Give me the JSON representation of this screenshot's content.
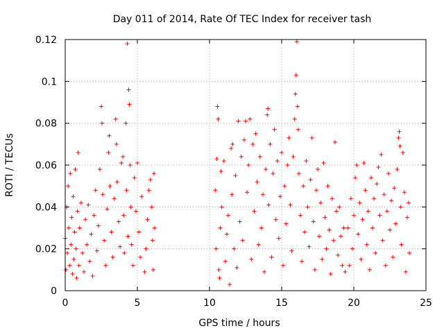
{
  "chart_data": {
    "type": "scatter",
    "title": "Day 011 of 2014, Rate Of TEC Index for receiver tash",
    "xlabel": "GPS time / hours",
    "ylabel": "ROTI / TECUs",
    "xlim": [
      0,
      25
    ],
    "ylim": [
      0,
      0.12
    ],
    "x_ticks": [
      0,
      5,
      10,
      15,
      20,
      25
    ],
    "y_ticks": [
      0,
      0.02,
      0.04,
      0.06,
      0.08,
      0.1,
      0.12
    ],
    "x_tick_labels": [
      "0",
      "5",
      "10",
      "15",
      "20",
      "25"
    ],
    "y_tick_labels": [
      "0",
      "0.02",
      "0.04",
      "0.06",
      "0.08",
      "0.1",
      "0.12"
    ],
    "grid": true,
    "marker": "+",
    "color": "#ff0000",
    "series": [
      {
        "name": "ROTI",
        "points": [
          [
            0.0,
            0.025
          ],
          [
            0.05,
            0.01
          ],
          [
            0.1,
            0.04
          ],
          [
            0.15,
            0.018
          ],
          [
            0.2,
            0.05
          ],
          [
            0.25,
            0.03
          ],
          [
            0.3,
            0.012
          ],
          [
            0.35,
            0.056
          ],
          [
            0.4,
            0.022
          ],
          [
            0.45,
            0.035
          ],
          [
            0.5,
            0.008
          ],
          [
            0.55,
            0.045
          ],
          [
            0.6,
            0.015
          ],
          [
            0.65,
            0.028
          ],
          [
            0.7,
            0.058
          ],
          [
            0.75,
            0.02
          ],
          [
            0.8,
            0.006
          ],
          [
            0.85,
            0.038
          ],
          [
            0.9,
            0.066
          ],
          [
            0.95,
            0.012
          ],
          [
            1.0,
            0.03
          ],
          [
            1.1,
            0.042
          ],
          [
            1.2,
            0.018
          ],
          [
            1.3,
            0.009
          ],
          [
            1.4,
            0.034
          ],
          [
            1.5,
            0.022
          ],
          [
            1.6,
            0.041
          ],
          [
            1.7,
            0.014
          ],
          [
            1.8,
            0.027
          ],
          [
            1.9,
            0.007
          ],
          [
            2.0,
            0.036
          ],
          [
            2.1,
            0.048
          ],
          [
            2.2,
            0.019
          ],
          [
            2.3,
            0.031
          ],
          [
            2.4,
            0.058
          ],
          [
            2.5,
            0.088
          ],
          [
            2.55,
            0.08
          ],
          [
            2.6,
            0.046
          ],
          [
            2.7,
            0.024
          ],
          [
            2.8,
            0.012
          ],
          [
            2.9,
            0.039
          ],
          [
            3.0,
            0.066
          ],
          [
            3.05,
            0.074
          ],
          [
            3.1,
            0.05
          ],
          [
            3.2,
            0.028
          ],
          [
            3.3,
            0.016
          ],
          [
            3.4,
            0.044
          ],
          [
            3.5,
            0.082
          ],
          [
            3.55,
            0.07
          ],
          [
            3.6,
            0.052
          ],
          [
            3.7,
            0.033
          ],
          [
            3.8,
            0.021
          ],
          [
            3.9,
            0.061
          ],
          [
            4.0,
            0.064
          ],
          [
            4.05,
            0.036
          ],
          [
            4.1,
            0.018
          ],
          [
            4.2,
            0.08
          ],
          [
            4.25,
            0.048
          ],
          [
            4.3,
            0.118
          ],
          [
            4.35,
            0.026
          ],
          [
            4.4,
            0.096
          ],
          [
            4.45,
            0.089
          ],
          [
            4.5,
            0.06
          ],
          [
            4.55,
            0.04
          ],
          [
            4.6,
            0.022
          ],
          [
            4.7,
            0.012
          ],
          [
            4.8,
            0.054
          ],
          [
            4.9,
            0.038
          ],
          [
            5.0,
            0.061
          ],
          [
            5.1,
            0.028
          ],
          [
            5.2,
            0.016
          ],
          [
            5.3,
            0.045
          ],
          [
            5.5,
            0.009
          ],
          [
            5.6,
            0.02
          ],
          [
            5.7,
            0.034
          ],
          [
            5.8,
            0.048
          ],
          [
            5.9,
            0.053
          ],
          [
            6.0,
            0.04
          ],
          [
            6.05,
            0.024
          ],
          [
            6.1,
            0.01
          ],
          [
            6.15,
            0.056
          ],
          [
            6.2,
            0.03
          ],
          [
            10.4,
            0.048
          ],
          [
            10.45,
            0.02
          ],
          [
            10.5,
            0.063
          ],
          [
            10.55,
            0.088
          ],
          [
            10.6,
            0.082
          ],
          [
            10.65,
            0.01
          ],
          [
            10.7,
            0.006
          ],
          [
            10.75,
            0.03
          ],
          [
            10.8,
            0.057
          ],
          [
            10.85,
            0.04
          ],
          [
            11.0,
            0.062
          ],
          [
            11.1,
            0.014
          ],
          [
            11.2,
            0.027
          ],
          [
            11.3,
            0.036
          ],
          [
            11.4,
            0.003
          ],
          [
            11.5,
            0.068
          ],
          [
            11.55,
            0.046
          ],
          [
            11.6,
            0.07
          ],
          [
            11.7,
            0.02
          ],
          [
            11.8,
            0.055
          ],
          [
            11.9,
            0.011
          ],
          [
            12.0,
            0.081
          ],
          [
            12.1,
            0.033
          ],
          [
            12.2,
            0.064
          ],
          [
            12.3,
            0.024
          ],
          [
            12.4,
            0.072
          ],
          [
            12.5,
            0.081
          ],
          [
            12.6,
            0.047
          ],
          [
            12.7,
            0.06
          ],
          [
            12.8,
            0.082
          ],
          [
            12.9,
            0.015
          ],
          [
            13.0,
            0.07
          ],
          [
            13.1,
            0.038
          ],
          [
            13.2,
            0.075
          ],
          [
            13.3,
            0.052
          ],
          [
            13.4,
            0.022
          ],
          [
            13.5,
            0.064
          ],
          [
            13.6,
            0.03
          ],
          [
            13.7,
            0.046
          ],
          [
            13.8,
            0.009
          ],
          [
            13.9,
            0.058
          ],
          [
            14.0,
            0.084
          ],
          [
            14.05,
            0.087
          ],
          [
            14.1,
            0.041
          ],
          [
            14.2,
            0.07
          ],
          [
            14.3,
            0.016
          ],
          [
            14.4,
            0.056
          ],
          [
            14.5,
            0.077
          ],
          [
            14.6,
            0.034
          ],
          [
            14.7,
            0.062
          ],
          [
            14.8,
            0.025
          ],
          [
            14.9,
            0.045
          ],
          [
            15.0,
            0.066
          ],
          [
            15.1,
            0.012
          ],
          [
            15.2,
            0.05
          ],
          [
            15.3,
            0.032
          ],
          [
            15.4,
            0.06
          ],
          [
            15.5,
            0.073
          ],
          [
            15.6,
            0.041
          ],
          [
            15.7,
            0.019
          ],
          [
            15.8,
            0.064
          ],
          [
            15.9,
            0.082
          ],
          [
            15.95,
            0.094
          ],
          [
            16.0,
            0.103
          ],
          [
            16.05,
            0.119
          ],
          [
            16.1,
            0.088
          ],
          [
            16.15,
            0.077
          ],
          [
            16.2,
            0.056
          ],
          [
            16.3,
            0.036
          ],
          [
            16.4,
            0.014
          ],
          [
            16.5,
            0.05
          ],
          [
            16.6,
            0.028
          ],
          [
            16.7,
            0.062
          ],
          [
            16.8,
            0.04
          ],
          [
            16.9,
            0.021
          ],
          [
            17.0,
            0.053
          ],
          [
            17.1,
            0.073
          ],
          [
            17.2,
            0.033
          ],
          [
            17.3,
            0.01
          ],
          [
            17.4,
            0.048
          ],
          [
            17.5,
            0.058
          ],
          [
            17.6,
            0.026
          ],
          [
            17.7,
            0.042
          ],
          [
            17.8,
            0.015
          ],
          [
            17.9,
            0.061
          ],
          [
            18.0,
            0.035
          ],
          [
            18.1,
            0.02
          ],
          [
            18.2,
            0.05
          ],
          [
            18.3,
            0.029
          ],
          [
            18.4,
            0.008
          ],
          [
            18.5,
            0.044
          ],
          [
            18.6,
            0.024
          ],
          [
            18.7,
            0.071
          ],
          [
            18.8,
            0.038
          ],
          [
            18.9,
            0.017
          ],
          [
            19.0,
            0.04
          ],
          [
            19.1,
            0.026
          ],
          [
            19.2,
            0.012
          ],
          [
            19.3,
            0.03
          ],
          [
            19.4,
            0.009
          ],
          [
            19.6,
            0.03
          ],
          [
            19.7,
            0.012
          ],
          [
            19.8,
            0.044
          ],
          [
            19.9,
            0.02
          ],
          [
            20.0,
            0.036
          ],
          [
            20.1,
            0.054
          ],
          [
            20.2,
            0.06
          ],
          [
            20.3,
            0.027
          ],
          [
            20.4,
            0.042
          ],
          [
            20.5,
            0.015
          ],
          [
            20.6,
            0.034
          ],
          [
            20.7,
            0.061
          ],
          [
            20.8,
            0.048
          ],
          [
            20.9,
            0.022
          ],
          [
            21.0,
            0.038
          ],
          [
            21.1,
            0.01
          ],
          [
            21.2,
            0.054
          ],
          [
            21.3,
            0.03
          ],
          [
            21.4,
            0.044
          ],
          [
            21.5,
            0.018
          ],
          [
            21.6,
            0.051
          ],
          [
            21.7,
            0.059
          ],
          [
            21.8,
            0.036
          ],
          [
            21.9,
            0.065
          ],
          [
            22.0,
            0.024
          ],
          [
            22.1,
            0.046
          ],
          [
            22.2,
            0.012
          ],
          [
            22.3,
            0.038
          ],
          [
            22.4,
            0.056
          ],
          [
            22.5,
            0.029
          ],
          [
            22.6,
            0.043
          ],
          [
            22.7,
            0.016
          ],
          [
            22.8,
            0.049
          ],
          [
            22.9,
            0.032
          ],
          [
            23.0,
            0.058
          ],
          [
            23.1,
            0.073
          ],
          [
            23.15,
            0.076
          ],
          [
            23.2,
            0.069
          ],
          [
            23.25,
            0.04
          ],
          [
            23.3,
            0.022
          ],
          [
            23.4,
            0.066
          ],
          [
            23.5,
            0.047
          ],
          [
            23.6,
            0.009
          ],
          [
            23.7,
            0.035
          ],
          [
            23.8,
            0.042
          ],
          [
            23.85,
            0.018
          ]
        ]
      }
    ]
  }
}
